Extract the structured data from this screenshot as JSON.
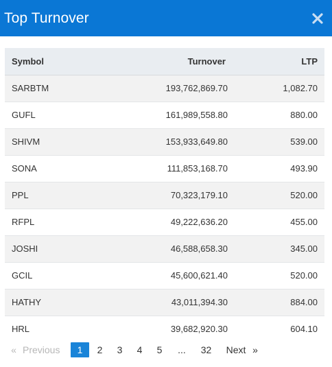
{
  "modal": {
    "title": "Top Turnover",
    "close_icon": "close-icon"
  },
  "table": {
    "headers": {
      "symbol": "Symbol",
      "turnover": "Turnover",
      "ltp": "LTP"
    },
    "rows": [
      {
        "symbol": "SARBTM",
        "turnover": "193,762,869.70",
        "ltp": "1,082.70"
      },
      {
        "symbol": "GUFL",
        "turnover": "161,989,558.80",
        "ltp": "880.00"
      },
      {
        "symbol": "SHIVM",
        "turnover": "153,933,649.80",
        "ltp": "539.00"
      },
      {
        "symbol": "SONA",
        "turnover": "111,853,168.70",
        "ltp": "493.90"
      },
      {
        "symbol": "PPL",
        "turnover": "70,323,179.10",
        "ltp": "520.00"
      },
      {
        "symbol": "RFPL",
        "turnover": "49,222,636.20",
        "ltp": "455.00"
      },
      {
        "symbol": "JOSHI",
        "turnover": "46,588,658.30",
        "ltp": "345.00"
      },
      {
        "symbol": "GCIL",
        "turnover": "45,600,621.40",
        "ltp": "520.00"
      },
      {
        "symbol": "HATHY",
        "turnover": "43,011,394.30",
        "ltp": "884.00"
      },
      {
        "symbol": "HRL",
        "turnover": "39,682,920.30",
        "ltp": "604.10"
      }
    ]
  },
  "pagination": {
    "first_arrow": "«",
    "previous": "Previous",
    "pages": [
      "1",
      "2",
      "3",
      "4",
      "5"
    ],
    "active_page": "1",
    "ellipsis": "...",
    "last_page": "32",
    "next": "Next",
    "last_arrow": "»"
  },
  "colors": {
    "header_bg": "#0a77d5",
    "active_page_bg": "#1a84d8",
    "table_header_bg": "#e9edf1"
  }
}
